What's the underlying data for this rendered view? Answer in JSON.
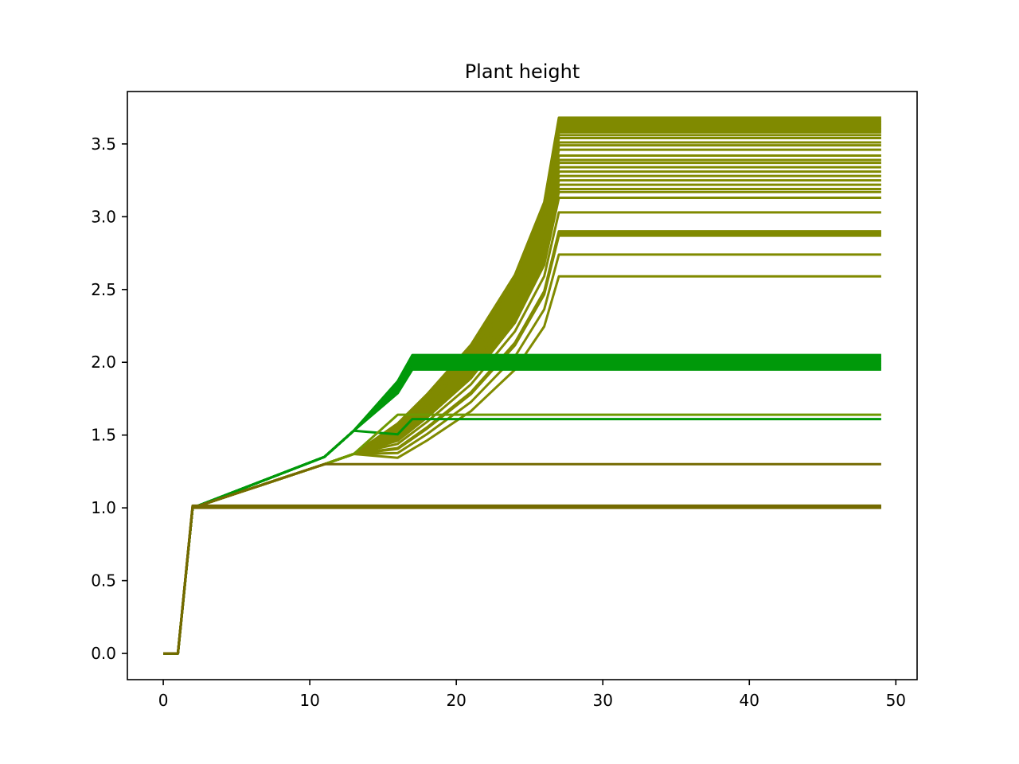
{
  "chart_data": {
    "type": "line",
    "title": "Plant height",
    "xlabel": "",
    "ylabel": "",
    "xlim": [
      -2.45,
      51.45
    ],
    "ylim": [
      -0.18,
      3.86
    ],
    "xticks": [
      0,
      10,
      20,
      30,
      40,
      50
    ],
    "xtick_labels": [
      "0",
      "10",
      "20",
      "30",
      "40",
      "50"
    ],
    "yticks": [
      0.0,
      0.5,
      1.0,
      1.5,
      2.0,
      2.5,
      3.0,
      3.5
    ],
    "ytick_labels": [
      "0.0",
      "0.5",
      "1.0",
      "1.5",
      "2.0",
      "2.5",
      "3.0",
      "3.5"
    ],
    "grid": false,
    "legend": "none",
    "colors": {
      "tall": "#808a00",
      "mid": "#00990a",
      "mid_alt": "#6e9900",
      "short": "#746a00"
    },
    "series_groups": [
      {
        "name": "tall",
        "color": "#808a00",
        "base_x": [
          0,
          1,
          2,
          11,
          13,
          16,
          18,
          21,
          24,
          26,
          27,
          49
        ],
        "base_y": [
          0,
          0,
          1.0,
          1.3,
          1.37,
          1.58,
          1.78,
          2.12,
          2.6,
          3.1,
          3.68,
          3.68
        ],
        "plateau_start": 27,
        "finals": [
          3.68,
          3.67,
          3.66,
          3.65,
          3.64,
          3.63,
          3.62,
          3.61,
          3.6,
          3.59,
          3.58,
          3.56,
          3.54,
          3.51,
          3.49,
          3.46,
          3.42,
          3.39,
          3.37,
          3.34,
          3.31,
          3.28,
          3.25,
          3.22,
          3.19,
          3.17,
          3.13,
          3.03,
          2.9,
          2.89,
          2.88,
          2.87,
          2.74,
          2.59
        ]
      },
      {
        "name": "mid",
        "color": "#00990a",
        "base_x": [
          0,
          1,
          2,
          11,
          13,
          16,
          17,
          49
        ],
        "base_y": [
          0,
          0,
          1.0,
          1.35,
          1.53,
          1.87,
          2.05,
          2.05
        ],
        "plateau_start": 17,
        "finals": [
          2.05,
          2.04,
          2.03,
          2.02,
          2.01,
          2.0,
          1.99,
          1.98,
          1.97,
          1.96,
          1.95,
          1.61
        ]
      },
      {
        "name": "mid_alt",
        "color": "#6e9900",
        "base_x": [
          0,
          1,
          2,
          11,
          13,
          16,
          49
        ],
        "base_y": [
          0,
          0,
          1.0,
          1.3,
          1.37,
          1.64,
          1.64
        ],
        "plateau_start": 16,
        "finals": [
          1.64
        ]
      },
      {
        "name": "short",
        "color": "#746a00",
        "base_x": [
          0,
          1,
          2,
          11,
          49
        ],
        "base_y": [
          0,
          0,
          1.0,
          1.3,
          1.3
        ],
        "plateau_start": 11,
        "finals": [
          1.3
        ]
      },
      {
        "name": "flat",
        "color": "#746a00",
        "base_x": [
          0,
          1,
          2,
          49
        ],
        "base_y": [
          0,
          0,
          1.0,
          1.0
        ],
        "plateau_start": 2,
        "finals": [
          1.0,
          1.005,
          1.01,
          1.015
        ]
      }
    ]
  }
}
